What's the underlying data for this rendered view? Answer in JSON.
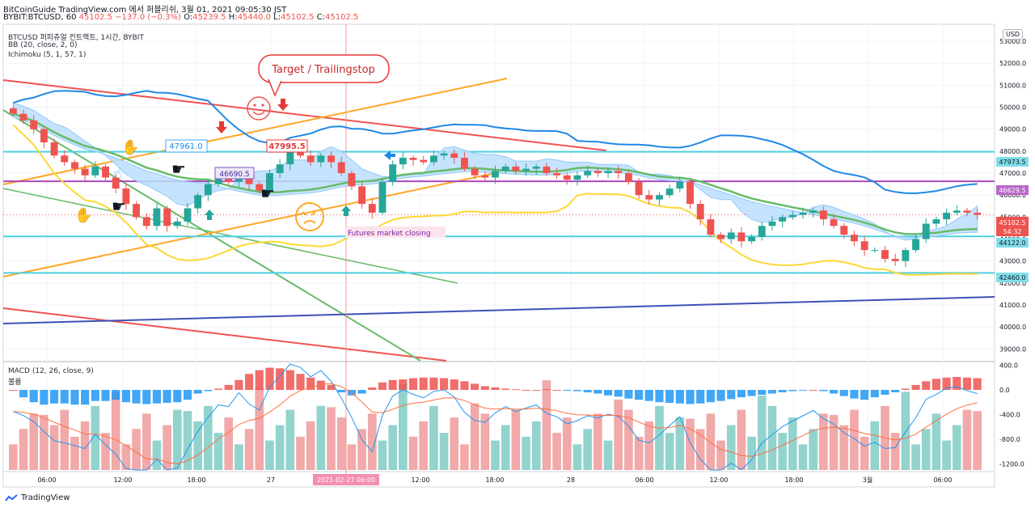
{
  "header": {
    "line1": "BitCoinGuide TradingView.com 에서 퍼블리쉬, 3월 01, 2021 09:05:30 JST",
    "symbol": "BYBIT:BTCUSD, 60",
    "last": "45102.5",
    "change": "−137.0 (−0.3%)",
    "o": "45239.5",
    "h": "45440.0",
    "l": "45102.5",
    "c": "45102.5"
  },
  "indicators": {
    "title": "BTCUSD 퍼피츄얼 컨트랙트, 1시간, BYBIT",
    "bb": "BB (20, close, 2, 0)",
    "ichimoku": "Ichimoku (5, 1, 57, 1)",
    "macd": "MACD (12, 26, close, 9)",
    "macd_sub": "볼륨"
  },
  "annotations": {
    "target": "Target / Trailingstop",
    "futures": "Futures market closing",
    "label1": "47961.0",
    "label2": "47995.5",
    "label3": "46690.5",
    "date_marker": "2021-02-27  06:00"
  },
  "price_tags": {
    "last": "45102.5",
    "countdown": "54:32",
    "l47973": "47973.5",
    "l46629": "46629.5",
    "l44122": "44122.0",
    "l42460": "42460.0"
  },
  "usd": "USD",
  "footer": {
    "brand": "TradingView"
  },
  "chart_data": [
    {
      "type": "candlestick",
      "x_ticks": [
        "06:00",
        "12:00",
        "18:00",
        "27",
        "12:00",
        "18:00",
        "28",
        "06:00",
        "12:00",
        "18:00",
        "3월",
        "06:00"
      ],
      "y_ticks": [
        39000,
        40000,
        41000,
        42000,
        43000,
        44000,
        45000,
        46000,
        47000,
        48000,
        49000,
        50000,
        51000,
        52000,
        53000
      ],
      "ylim": [
        38500,
        53700
      ],
      "horizontal_levels": [
        47973.5,
        46629.5,
        44122.0,
        42460.0
      ],
      "close": [
        49700,
        49400,
        49000,
        48400,
        47800,
        47500,
        47200,
        46900,
        47300,
        46800,
        46300,
        45600,
        45000,
        44600,
        45400,
        44600,
        44800,
        45400,
        46000,
        46500,
        46800,
        46600,
        47000,
        46500,
        46200,
        47000,
        47400,
        48000,
        47800,
        47500,
        47800,
        47500,
        47000,
        46400,
        45600,
        45200,
        46600,
        47400,
        47700,
        47600,
        47500,
        47800,
        47900,
        47700,
        47200,
        46900,
        46800,
        47100,
        47300,
        47100,
        47200,
        47300,
        47000,
        46900,
        46700,
        46900,
        47100,
        47000,
        47100,
        47000,
        46600,
        46000,
        45800,
        46000,
        46300,
        46600,
        45600,
        44900,
        44200,
        44000,
        44300,
        43900,
        44100,
        44600,
        44800,
        45000,
        45100,
        45200,
        45300,
        44900,
        44600,
        44200,
        43900,
        43500,
        43500,
        43100,
        43000,
        43500,
        44000,
        44700,
        44900,
        45200,
        45300,
        45200,
        45102.5
      ],
      "macd_histogram": [
        0,
        -120,
        -200,
        -240,
        -220,
        -220,
        -240,
        -240,
        -180,
        -180,
        -160,
        -200,
        -220,
        -230,
        -220,
        -210,
        -200,
        -160,
        -60,
        -20,
        20,
        80,
        160,
        260,
        320,
        360,
        350,
        320,
        260,
        200,
        150,
        80,
        -40,
        -90,
        -60,
        40,
        120,
        160,
        170,
        190,
        200,
        200,
        190,
        170,
        140,
        100,
        60,
        40,
        20,
        10,
        0,
        0,
        10,
        0,
        -10,
        -20,
        -40,
        -60,
        -90,
        -110,
        -140,
        -160,
        -180,
        -200,
        -210,
        -220,
        -230,
        -220,
        -200,
        -180,
        -150,
        -120,
        -100,
        -80,
        -60,
        -40,
        -20,
        -10,
        0,
        -20,
        -60,
        -100,
        -140,
        -160,
        -120,
        -80,
        -40,
        20,
        80,
        140,
        180,
        200,
        210,
        200,
        190
      ],
      "macd_y_ticks": [
        400,
        0,
        -400,
        -800,
        -1200
      ],
      "macd_ylim": [
        -1300,
        420
      ]
    }
  ]
}
